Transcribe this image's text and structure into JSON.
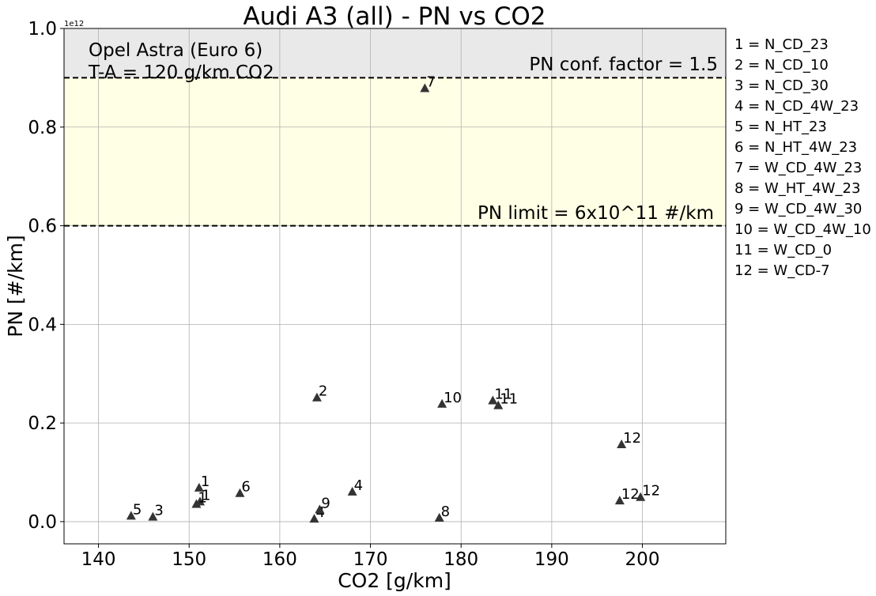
{
  "chart_data": {
    "type": "scatter",
    "title": "Audi A3 (all) - PN vs CO2",
    "xlabel": "CO2 [g/km]",
    "ylabel": "PN [#/km]",
    "y_offset_label": "1e12",
    "xlim": [
      136.2,
      209.2
    ],
    "ylim": [
      -0.045,
      1.0
    ],
    "x_ticks": [
      140,
      150,
      160,
      170,
      180,
      190,
      200
    ],
    "x_tick_labels": [
      "140",
      "150",
      "160",
      "170",
      "180",
      "190",
      "200"
    ],
    "y_ticks": [
      0.0,
      0.2,
      0.4,
      0.6,
      0.8,
      1.0
    ],
    "y_tick_labels": [
      "0.0",
      "0.2",
      "0.4",
      "0.6",
      "0.8",
      "1.0"
    ],
    "grid": true,
    "marker": "triangle",
    "marker_color": "#333333",
    "points": [
      {
        "x": 151.1,
        "y": 0.069,
        "label": "1"
      },
      {
        "x": 151.2,
        "y": 0.041,
        "label": "1"
      },
      {
        "x": 150.8,
        "y": 0.036,
        "label": "1"
      },
      {
        "x": 164.1,
        "y": 0.252,
        "label": "2"
      },
      {
        "x": 146.0,
        "y": 0.01,
        "label": "3"
      },
      {
        "x": 168.0,
        "y": 0.061,
        "label": "4"
      },
      {
        "x": 163.8,
        "y": 0.006,
        "label": "4"
      },
      {
        "x": 143.6,
        "y": 0.012,
        "label": "5"
      },
      {
        "x": 155.6,
        "y": 0.058,
        "label": "6"
      },
      {
        "x": 176.0,
        "y": 0.879,
        "label": "7"
      },
      {
        "x": 177.6,
        "y": 0.008,
        "label": "8"
      },
      {
        "x": 164.4,
        "y": 0.025,
        "label": "9"
      },
      {
        "x": 177.9,
        "y": 0.239,
        "label": "10"
      },
      {
        "x": 183.5,
        "y": 0.246,
        "label": "11"
      },
      {
        "x": 184.1,
        "y": 0.236,
        "label": "11"
      },
      {
        "x": 197.7,
        "y": 0.157,
        "label": "12"
      },
      {
        "x": 197.5,
        "y": 0.043,
        "label": "12"
      },
      {
        "x": 199.8,
        "y": 0.05,
        "label": "12"
      }
    ],
    "bands": [
      {
        "y0": 0.9,
        "y1": 1.0,
        "color": "#e9e9e9"
      },
      {
        "y0": 0.6,
        "y1": 0.9,
        "color": "#ffffe5"
      }
    ],
    "hlines": [
      {
        "y": 0.9,
        "label": "PN conf. factor = 1.5"
      },
      {
        "y": 0.6,
        "label": "PN limit = 6x10^11 #/km"
      }
    ],
    "annotation_lines": [
      "Opel Astra (Euro 6)",
      "T-A = 120 g/km CO2"
    ],
    "legend_position": "right",
    "legend": [
      "1 = N_CD_23",
      "2 = N_CD_10",
      "3 = N_CD_30",
      "4 = N_CD_4W_23",
      "5 = N_HT_23",
      "6 = N_HT_4W_23",
      "7 = W_CD_4W_23",
      "8 = W_HT_4W_23",
      "9 = W_CD_4W_30",
      "10 = W_CD_4W_10",
      "11 = W_CD_0",
      "12 = W_CD-7"
    ]
  }
}
